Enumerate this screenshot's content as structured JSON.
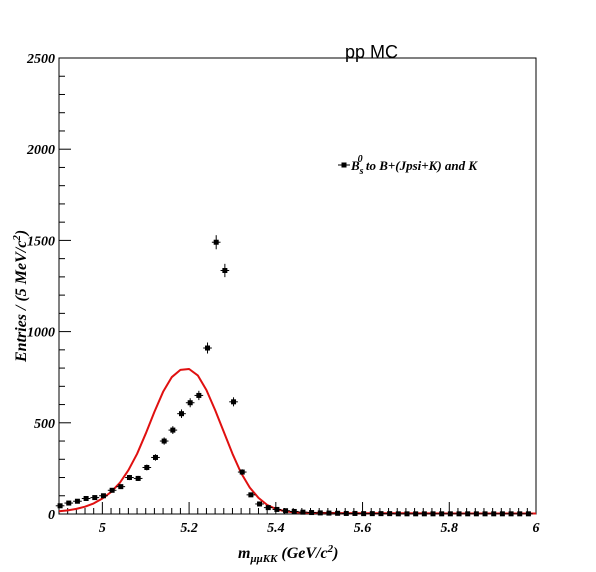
{
  "title": "pp MC",
  "chart_data": {
    "type": "scatter",
    "xlabel_main": "m",
    "xlabel_sub": "μμKK",
    "xlabel_unit_pre": " (GeV/c",
    "xlabel_unit_sup": "2",
    "xlabel_unit_post": ")",
    "ylabel_pre": "Entries / (5 MeV/c",
    "ylabel_sup": "2",
    "ylabel_post": ")",
    "xlim": [
      4.9,
      6.0
    ],
    "ylim": [
      0,
      2500
    ],
    "x_ticks": [
      5,
      5.2,
      5.4,
      5.6,
      5.8,
      6
    ],
    "x_tick_labels": [
      "5",
      "5.2",
      "5.4",
      "5.6",
      "5.8",
      "6"
    ],
    "y_ticks": [
      0,
      500,
      1000,
      1500,
      2000,
      2500
    ],
    "y_tick_labels": [
      "0",
      "500",
      "1000",
      "1500",
      "2000",
      "2500"
    ],
    "legend": {
      "main": "B",
      "sub": "s",
      "sup": "0",
      "rest": " to B+(Jpsi+K) and K",
      "placement": "top-right"
    },
    "series": [
      {
        "kind": "points",
        "x": [
          4.9025,
          4.9225,
          4.9425,
          4.9625,
          4.9825,
          5.0025,
          5.0225,
          5.0425,
          5.0625,
          5.0825,
          5.1025,
          5.1225,
          5.1425,
          5.1625,
          5.1825,
          5.2025,
          5.2225,
          5.2425,
          5.2625,
          5.2825,
          5.3025,
          5.3225,
          5.3425,
          5.3625,
          5.3825,
          5.4025,
          5.4225,
          5.4425,
          5.4625,
          5.4825,
          5.5025,
          5.5225,
          5.5425,
          5.5625,
          5.5825,
          5.6025,
          5.6225,
          5.6425,
          5.6625,
          5.6825,
          5.7025,
          5.7225,
          5.7425,
          5.7625,
          5.7825,
          5.8025,
          5.8225,
          5.8425,
          5.8625,
          5.8825,
          5.9025,
          5.9225,
          5.9425,
          5.9625,
          5.9825
        ],
        "y": [
          45,
          60,
          70,
          85,
          90,
          100,
          130,
          150,
          200,
          195,
          255,
          310,
          400,
          460,
          550,
          610,
          650,
          910,
          1490,
          1335,
          615,
          230,
          105,
          55,
          35,
          25,
          18,
          14,
          10,
          8,
          6,
          5,
          4,
          3,
          3,
          2,
          2,
          2,
          2,
          1,
          1,
          1,
          1,
          1,
          1,
          1,
          1,
          1,
          1,
          1,
          1,
          1,
          1,
          1,
          1
        ],
        "color": "#000000"
      },
      {
        "kind": "curve",
        "x": [
          4.9,
          4.92,
          4.94,
          4.96,
          4.98,
          5.0,
          5.02,
          5.04,
          5.06,
          5.08,
          5.1,
          5.12,
          5.14,
          5.16,
          5.18,
          5.2,
          5.22,
          5.24,
          5.26,
          5.28,
          5.3,
          5.32,
          5.34,
          5.36,
          5.38,
          5.4,
          5.42,
          5.44,
          5.46,
          5.48,
          5.5,
          5.55,
          5.6,
          5.7,
          5.8,
          5.9,
          6.0
        ],
        "y": [
          15,
          20,
          28,
          40,
          58,
          85,
          120,
          170,
          240,
          330,
          440,
          560,
          670,
          750,
          790,
          795,
          760,
          680,
          570,
          450,
          330,
          225,
          145,
          88,
          50,
          28,
          16,
          10,
          8,
          6,
          6,
          5,
          4,
          4,
          3,
          3,
          3
        ],
        "color": "#e01010"
      }
    ]
  }
}
